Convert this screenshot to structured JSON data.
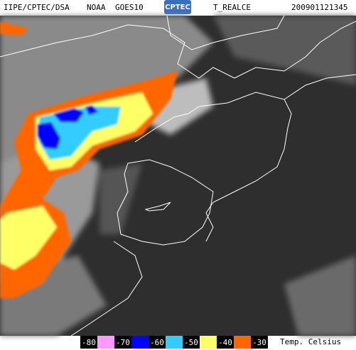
{
  "header": {
    "source": "IIPE/CPTEC/DSA",
    "satellite": "NOAA",
    "sensor": "GOES10",
    "logo": "CPTEC",
    "product": "T_REALCE",
    "timestamp": "200901121345"
  },
  "legend": {
    "title": "Temp. Celsius",
    "ticks": [
      -80,
      -70,
      -60,
      -50,
      -40,
      -30
    ],
    "colors": [
      "#ff99ff",
      "#0000ff",
      "#33ccff",
      "#ffff66",
      "#ff6600"
    ]
  }
}
